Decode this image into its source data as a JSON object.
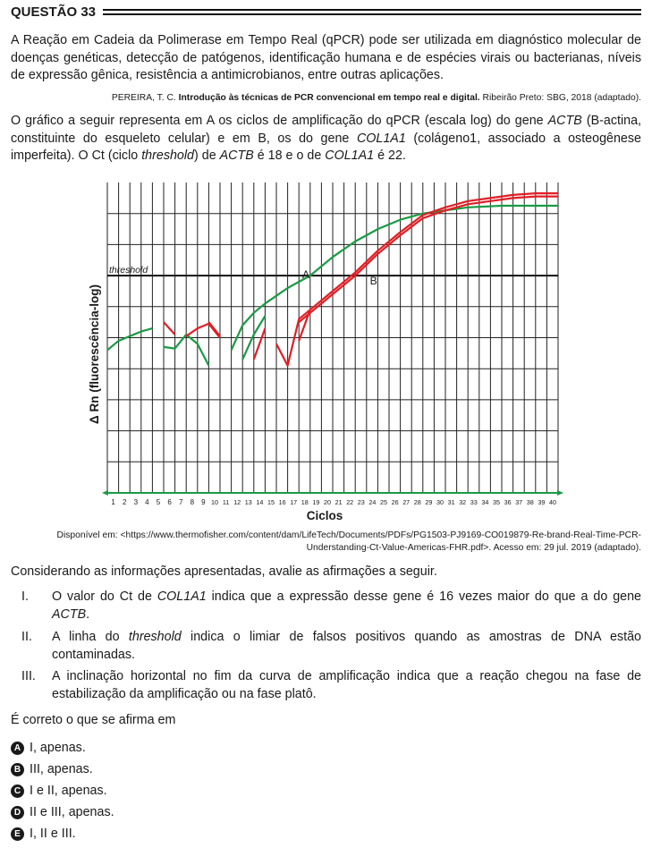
{
  "question": {
    "title": "QUESTÃO 33",
    "intro": "A Reação em Cadeia da Polimerase em Tempo Real (qPCR) pode ser utilizada em diagnóstico molecular de doenças genéticas, detecção de patógenos, identificação humana e de espécies virais ou bacterianas, níveis de expressão gênica, resistência a antimicrobianos, entre outras aplicações.",
    "citation_pre": "PEREIRA, T. C. ",
    "citation_title": "Introdução às técnicas de PCR convencional em tempo real e digital.",
    "citation_post": " Ribeirão Preto: SBG, 2018 (adaptado).",
    "graph_text_1": "O gráfico a seguir representa em A os ciclos de amplificação do qPCR (escala log) do gene ",
    "gene_actb": "ACTB",
    "graph_text_2": " (B-actina, constituinte do esqueleto celular) e em B, os do gene ",
    "gene_col": "COL1A1",
    "graph_text_3": " (colágeno1, associado a osteogênese imperfeita). O Ct (ciclo ",
    "threshold_word": "threshold",
    "graph_text_4": ") de ",
    "graph_text_5": " é 18 e o de ",
    "graph_text_6": " é 22.",
    "source": "Disponível em: <https://www.thermofisher.com/content/dam/LifeTech/Documents/PDFs/PG1503-PJ9169-CO019879-Re-brand-Real-Time-PCR-Understanding-Ct-Value-Americas-FHR.pdf>. Acesso em: 29 jul. 2019 (adaptado).",
    "prompt": "Considerando as informações apresentadas, avalie as afirmações a seguir.",
    "statements": [
      {
        "num": "I.",
        "pre": "O valor do Ct de ",
        "em1": "COL1A1",
        "mid": " indica que a expressão desse gene é 16 vezes maior do que a do gene ",
        "em2": "ACTB",
        "post": "."
      },
      {
        "num": "II.",
        "pre": "A linha do ",
        "em1": "threshold",
        "mid": " indica o limiar de falsos positivos quando as amostras de DNA estão contaminadas.",
        "em2": "",
        "post": ""
      },
      {
        "num": "III.",
        "pre": "A inclinação horizontal no fim da curva de amplificação indica que a reação chegou na fase de estabilização da amplificação ou na fase platô.",
        "em1": "",
        "mid": "",
        "em2": "",
        "post": ""
      }
    ],
    "ask": "É correto o que se afirma em",
    "options": [
      {
        "letter": "A",
        "text": "I, apenas."
      },
      {
        "letter": "B",
        "text": "III, apenas."
      },
      {
        "letter": "C",
        "text": "I e II, apenas."
      },
      {
        "letter": "D",
        "text": "II e III, apenas."
      },
      {
        "letter": "E",
        "text": "I, II e III."
      }
    ]
  },
  "chart_data": {
    "type": "line",
    "xlabel": "Ciclos",
    "ylabel": "Δ Rn (fluorescência-log)",
    "x_ticks": [
      1,
      2,
      3,
      4,
      5,
      6,
      7,
      8,
      9,
      10,
      11,
      12,
      13,
      14,
      15,
      16,
      17,
      18,
      19,
      20,
      21,
      22,
      23,
      24,
      25,
      26,
      27,
      28,
      29,
      30,
      31,
      32,
      33,
      34,
      35,
      36,
      37,
      38,
      39,
      40
    ],
    "xlim": [
      0,
      40
    ],
    "y_scale": "log",
    "threshold_label": "threshold",
    "curve_labels": [
      "A",
      "B"
    ],
    "grid": true,
    "colors": {
      "A": "#1a9a44",
      "B": "#e01e25",
      "axis": "#1a9a44"
    },
    "series": [
      {
        "name": "A",
        "color": "#1a9a44",
        "segments": [
          [
            [
              0,
              4.6
            ],
            [
              1,
              4.9
            ],
            [
              2,
              5.05
            ],
            [
              3,
              5.2
            ],
            [
              4,
              5.3
            ]
          ],
          [
            [
              5,
              4.7
            ],
            [
              6,
              4.65
            ],
            [
              7,
              5.1
            ],
            [
              8,
              4.8
            ],
            [
              9,
              4.1
            ]
          ],
          [
            [
              11,
              4.6
            ],
            [
              12,
              5.4
            ],
            [
              13,
              5.8
            ],
            [
              14,
              6.1
            ]
          ],
          [
            [
              12,
              4.3
            ],
            [
              13,
              5.1
            ],
            [
              14,
              5.7
            ]
          ],
          [
            [
              14,
              6.1
            ],
            [
              16,
              6.6
            ],
            [
              18,
              7.0
            ],
            [
              20,
              7.6
            ],
            [
              22,
              8.1
            ],
            [
              24,
              8.5
            ],
            [
              26,
              8.8
            ],
            [
              28,
              9.0
            ],
            [
              30,
              9.1
            ],
            [
              32,
              9.2
            ],
            [
              35,
              9.25
            ],
            [
              40,
              9.25
            ]
          ]
        ]
      },
      {
        "name": "B",
        "color": "#e01e25",
        "segments": [
          [
            [
              5,
              5.5
            ],
            [
              6,
              5.1
            ]
          ],
          [
            [
              7,
              5.05
            ],
            [
              8,
              5.3
            ],
            [
              9,
              5.45
            ],
            [
              10,
              5.0
            ]
          ],
          [
            [
              9,
              5.5
            ],
            [
              10,
              5.05
            ]
          ],
          [
            [
              13,
              4.3
            ],
            [
              14,
              5.3
            ]
          ],
          [
            [
              15,
              4.8
            ],
            [
              16,
              4.1
            ],
            [
              17,
              5.6
            ],
            [
              18,
              5.9
            ]
          ],
          [
            [
              17,
              4.9
            ],
            [
              18,
              5.9
            ],
            [
              20,
              6.5
            ],
            [
              22,
              7.1
            ],
            [
              24,
              7.8
            ],
            [
              26,
              8.4
            ],
            [
              28,
              8.95
            ],
            [
              30,
              9.2
            ],
            [
              32,
              9.4
            ],
            [
              34,
              9.5
            ],
            [
              36,
              9.6
            ],
            [
              38,
              9.65
            ],
            [
              40,
              9.65
            ]
          ],
          [
            [
              17,
              5.5
            ],
            [
              18,
              5.8
            ],
            [
              20,
              6.4
            ],
            [
              22,
              7.0
            ],
            [
              24,
              7.7
            ],
            [
              26,
              8.3
            ],
            [
              28,
              8.85
            ],
            [
              30,
              9.1
            ],
            [
              32,
              9.3
            ],
            [
              34,
              9.4
            ],
            [
              36,
              9.5
            ],
            [
              38,
              9.55
            ],
            [
              40,
              9.55
            ]
          ]
        ]
      }
    ],
    "threshold_value": 7.0
  }
}
